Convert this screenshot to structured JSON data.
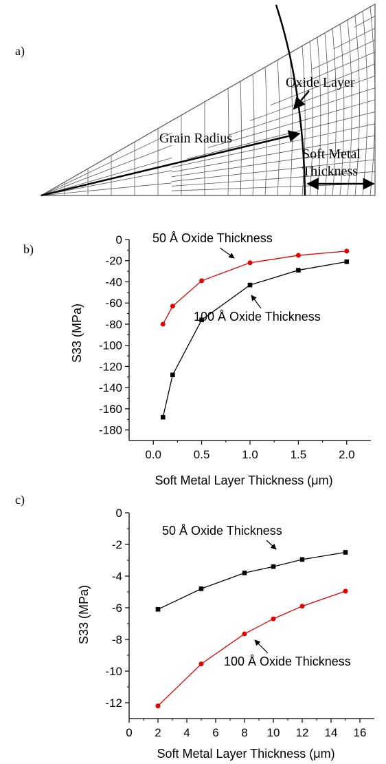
{
  "panel_labels": {
    "a": "a)",
    "b": "b)",
    "c": "c)"
  },
  "mesh": {
    "labels": {
      "oxide_layer": "Oxide Layer",
      "grain_radius": "Grain Radius",
      "soft_metal_1": "Soft Metal",
      "soft_metal_2": "Thickness"
    }
  },
  "colors": {
    "black": "#000000",
    "red": "#e00000",
    "grid": "#555555"
  },
  "chart_data": [
    {
      "type": "line",
      "xlabel": "Soft Metal Layer Thickness (μm)",
      "ylabel": "S33 (MPa)",
      "xlim": [
        -0.25,
        2.25
      ],
      "ylim": [
        -190,
        0
      ],
      "xticks": [
        0.0,
        0.5,
        1.0,
        1.5,
        2.0
      ],
      "xtick_labels": [
        "0.0",
        "0.5",
        "1.0",
        "1.5",
        "2.0"
      ],
      "yticks": [
        0,
        -20,
        -40,
        -60,
        -80,
        -100,
        -120,
        -140,
        -160,
        -180
      ],
      "ytick_labels": [
        "0",
        "-20",
        "-40",
        "-60",
        "-80",
        "-100",
        "-120",
        "-140",
        "-160",
        "-180"
      ],
      "series": [
        {
          "name": "50 Å Oxide Thickness",
          "color": "#e00000",
          "marker": "circle",
          "x": [
            0.1,
            0.2,
            0.5,
            1.0,
            1.5,
            2.0
          ],
          "y": [
            -80,
            -63,
            -39,
            -22,
            -15,
            -11
          ]
        },
        {
          "name": "100 Å Oxide Thickness",
          "color": "#000000",
          "marker": "square",
          "x": [
            0.1,
            0.2,
            0.5,
            1.0,
            1.5,
            2.0
          ],
          "y": [
            -168,
            -128,
            -76,
            -43,
            -29,
            -21
          ]
        }
      ]
    },
    {
      "type": "line",
      "xlabel": "Soft Metal Layer Thickness (μm)",
      "ylabel": "S33 (MPa)",
      "xlim": [
        0,
        17
      ],
      "ylim": [
        -13,
        0
      ],
      "xticks": [
        0,
        2,
        4,
        6,
        8,
        10,
        12,
        14,
        16
      ],
      "xtick_labels": [
        "0",
        "2",
        "4",
        "6",
        "8",
        "10",
        "12",
        "14",
        "16"
      ],
      "yticks": [
        0,
        -2,
        -4,
        -6,
        -8,
        -10,
        -12
      ],
      "ytick_labels": [
        "0",
        "-2",
        "-4",
        "-6",
        "-8",
        "-10",
        "-12"
      ],
      "series": [
        {
          "name": "50 Å Oxide Thickness",
          "color": "#000000",
          "marker": "square",
          "x": [
            2,
            5,
            8,
            10,
            12,
            15
          ],
          "y": [
            -6.1,
            -4.8,
            -3.8,
            -3.4,
            -2.95,
            -2.5
          ]
        },
        {
          "name": "100 Å Oxide Thickness",
          "color": "#e00000",
          "marker": "circle",
          "x": [
            2,
            5,
            8,
            10,
            12,
            15
          ],
          "y": [
            -12.2,
            -9.55,
            -7.65,
            -6.7,
            -5.9,
            -4.95
          ]
        }
      ]
    }
  ]
}
